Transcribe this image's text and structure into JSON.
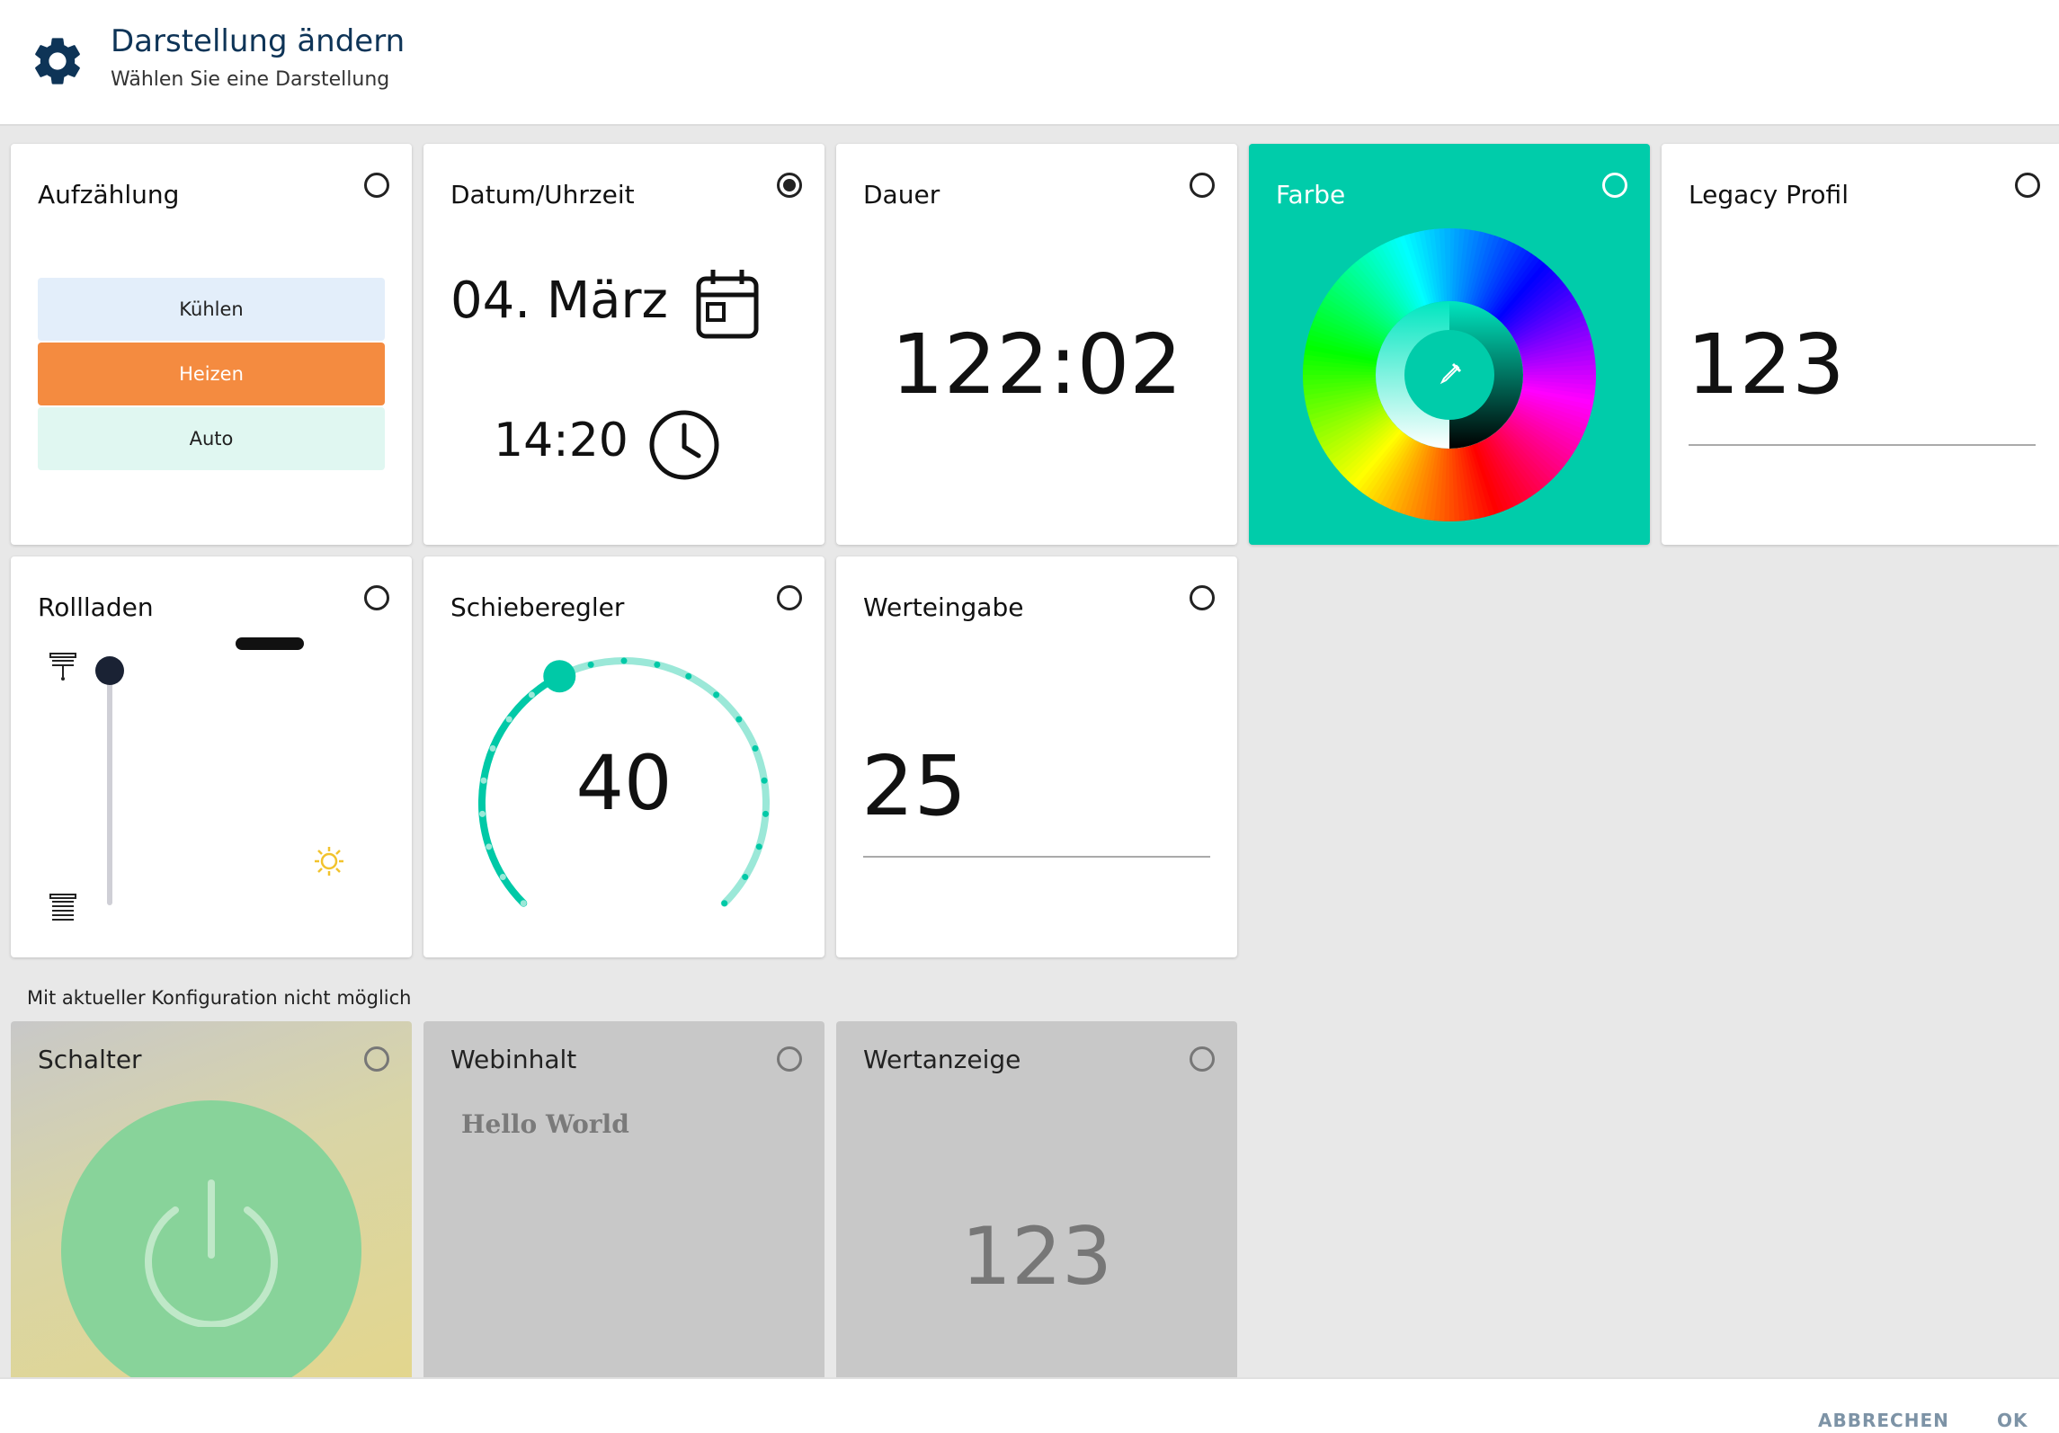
{
  "header": {
    "title": "Darstellung ändern",
    "subtitle": "Wählen Sie eine Darstellung",
    "icon": "gear-icon",
    "icon_color": "#0e3457"
  },
  "cards": {
    "enumeration": {
      "label": "Aufzählung",
      "options": [
        {
          "label": "Kühlen",
          "bg": "#e3eefa"
        },
        {
          "label": "Heizen",
          "bg": "#f48b40",
          "color": "#ffffff"
        },
        {
          "label": "Auto",
          "bg": "#e0f7f1"
        }
      ],
      "selected": false
    },
    "datetime": {
      "label": "Datum/Uhrzeit",
      "date": "04. März",
      "time": "14:20",
      "selected": true
    },
    "duration": {
      "label": "Dauer",
      "value": "122:02",
      "selected": false
    },
    "color": {
      "label": "Farbe",
      "bg": "#00ccaa",
      "selected": false
    },
    "legacy": {
      "label": "Legacy Profil",
      "value": "123",
      "selected": false
    },
    "shutter": {
      "label": "Rollladen",
      "selected": false
    },
    "slider": {
      "label": "Schieberegler",
      "value": "40",
      "accent": "#00c9a7",
      "selected": false
    },
    "input": {
      "label": "Werteingabe",
      "value": "25",
      "selected": false
    }
  },
  "disabled_section": {
    "label": "Mit aktueller Konfiguration nicht möglich",
    "cards": {
      "switch": {
        "label": "Schalter",
        "circle_color": "#88d39a"
      },
      "webcontent": {
        "label": "Webinhalt",
        "text": "Hello World"
      },
      "valuedisplay": {
        "label": "Wertanzeige",
        "value": "123"
      }
    }
  },
  "footer": {
    "cancel": "ABBRECHEN",
    "ok": "OK"
  }
}
